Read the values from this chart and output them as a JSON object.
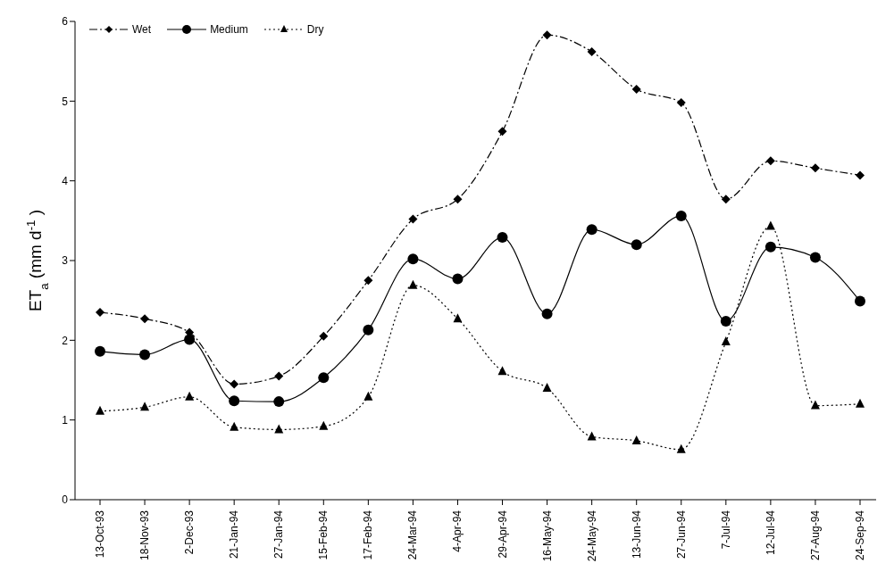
{
  "chart_data": {
    "type": "line",
    "ylabel": "ET$_{a}$ (mm d$^{-1}$)",
    "categories": [
      "13-Oct-93",
      "18-Nov-93",
      "2-Dec-93",
      "21-Jan-94",
      "27-Jan-94",
      "15-Feb-94",
      "17-Feb-94",
      "24-Mar-94",
      "4-Apr-94",
      "29-Apr-94",
      "16-May-94",
      "24-May-94",
      "13-Jun-94",
      "27-Jun-94",
      "7-Jul-94",
      "12-Jul-94",
      "27-Aug-94",
      "24-Sep-94"
    ],
    "series": [
      {
        "name": "Wet",
        "color": "#000000",
        "marker": "diamond",
        "line_style": "dashed",
        "values": [
          2.35,
          2.27,
          2.1,
          1.45,
          1.55,
          2.05,
          2.75,
          3.52,
          3.77,
          4.62,
          5.83,
          5.62,
          5.15,
          4.98,
          3.77,
          4.25,
          4.16,
          4.07
        ]
      },
      {
        "name": "Medium",
        "color": "#000000",
        "marker": "circle",
        "line_style": "solid",
        "values": [
          1.86,
          1.82,
          2.01,
          1.24,
          1.23,
          1.53,
          2.13,
          3.02,
          2.77,
          3.29,
          2.33,
          3.39,
          3.2,
          3.56,
          2.24,
          3.17,
          3.04,
          2.49
        ]
      },
      {
        "name": "Dry",
        "color": "#000000",
        "marker": "triangle",
        "line_style": "dotted",
        "values": [
          1.11,
          1.16,
          1.29,
          0.91,
          0.88,
          0.92,
          1.29,
          2.69,
          2.27,
          1.61,
          1.4,
          0.79,
          0.74,
          0.63,
          1.98,
          3.43,
          1.18,
          1.2
        ]
      }
    ],
    "ylim": [
      0,
      6
    ],
    "yticks": [
      0,
      1,
      2,
      3,
      4,
      5,
      6
    ],
    "legend": "top left"
  }
}
